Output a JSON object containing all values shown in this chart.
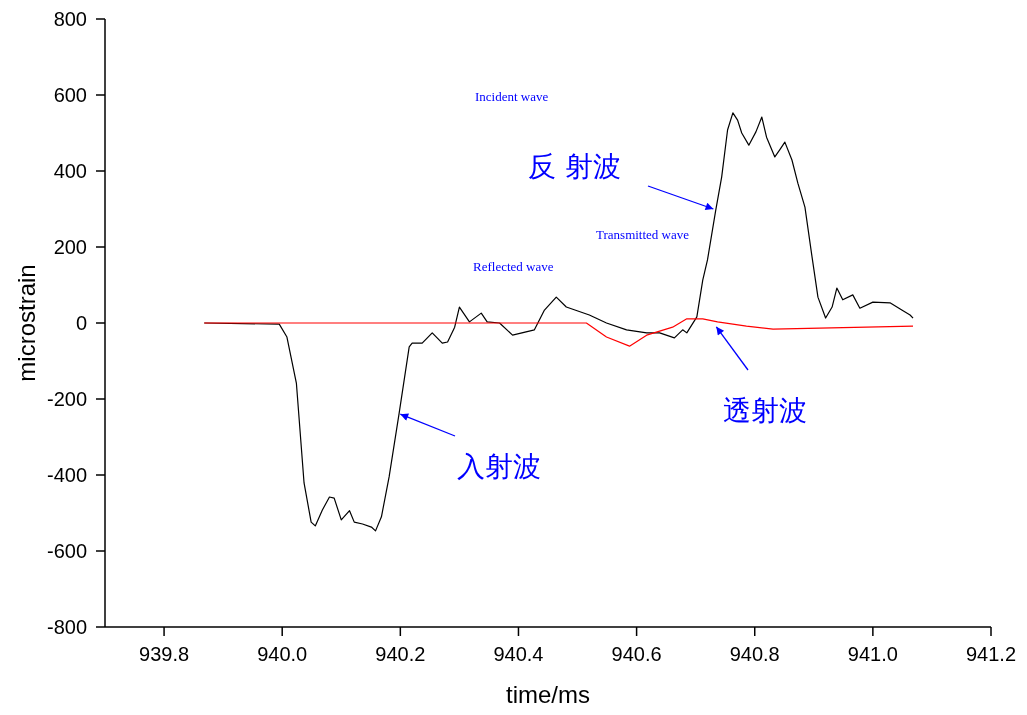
{
  "chart_data": {
    "type": "line",
    "xlabel": "time/ms",
    "ylabel": "microstrain",
    "xlim": [
      939.7,
      941.2
    ],
    "ylim": [
      -800,
      800
    ],
    "xticks": [
      939.8,
      {
        "value": 940,
        "label": "940.0"
      },
      940.2,
      940.4,
      940.6,
      940.8,
      {
        "value": 941,
        "label": "941.0"
      },
      941.2
    ],
    "yticks": [
      -800,
      -600,
      -400,
      -200,
      0,
      200,
      400,
      600,
      800
    ],
    "grid": false,
    "marker": "none",
    "line_style": "solid",
    "series": [
      {
        "color": "#000000",
        "x": [
          939.868,
          939.995,
          940.008,
          940.024,
          940.037,
          940.049,
          940.056,
          940.068,
          940.08,
          940.088,
          940.1,
          940.114,
          940.122,
          940.136,
          940.151,
          940.158,
          940.168,
          940.181,
          940.198,
          940.215,
          940.22,
          940.237,
          940.254,
          940.271,
          940.28,
          940.292,
          940.3,
          940.317,
          940.337,
          940.347,
          940.368,
          940.39,
          940.427,
          940.444,
          940.464,
          940.481,
          940.52,
          940.549,
          940.583,
          940.617,
          940.639,
          940.664,
          940.678,
          940.685,
          940.702,
          940.712,
          940.72,
          940.734,
          940.744,
          940.754,
          940.763,
          940.771,
          940.778,
          940.79,
          940.802,
          940.812,
          940.82,
          940.834,
          940.842,
          940.851,
          940.863,
          940.873,
          940.885,
          940.897,
          940.907,
          940.92,
          940.931,
          940.939,
          940.949,
          940.966,
          940.978,
          941,
          941.029,
          941.049,
          941.063,
          941.068
        ],
        "values": [
          0,
          -3,
          -37,
          -158,
          -421,
          -524,
          -534,
          -492,
          -458,
          -461,
          -518,
          -494,
          -524,
          -529,
          -537,
          -547,
          -510,
          -405,
          -237,
          -63,
          -53,
          -53,
          -26,
          -53,
          -50,
          -11,
          42,
          3,
          26,
          3,
          0,
          -32,
          -18,
          34,
          68,
          42,
          21,
          0,
          -18,
          -26,
          -26,
          -39,
          -18,
          -26,
          16,
          113,
          166,
          297,
          384,
          508,
          553,
          534,
          500,
          468,
          503,
          542,
          489,
          437,
          455,
          476,
          429,
          368,
          305,
          174,
          68,
          13,
          42,
          92,
          61,
          74,
          39,
          55,
          53,
          34,
          21,
          13
        ]
      },
      {
        "color": "#ff0000",
        "x": [
          939.868,
          940.515,
          940.549,
          940.588,
          940.617,
          940.661,
          940.685,
          940.712,
          940.737,
          940.786,
          940.831,
          941.068
        ],
        "values": [
          0,
          0,
          -37,
          -61,
          -32,
          -11,
          11,
          11,
          3,
          -8,
          -16,
          -8
        ]
      }
    ],
    "annotations": [
      "Incident wave",
      {
        "text": "反 射波",
        "x": 940.73,
        "y": 300
      },
      "Transmitted wave",
      "Reflected wave",
      {
        "text": "入射波",
        "x": 940.2,
        "y": -240
      },
      {
        "text": "透射波",
        "x": 940.735,
        "y": -10
      }
    ]
  }
}
